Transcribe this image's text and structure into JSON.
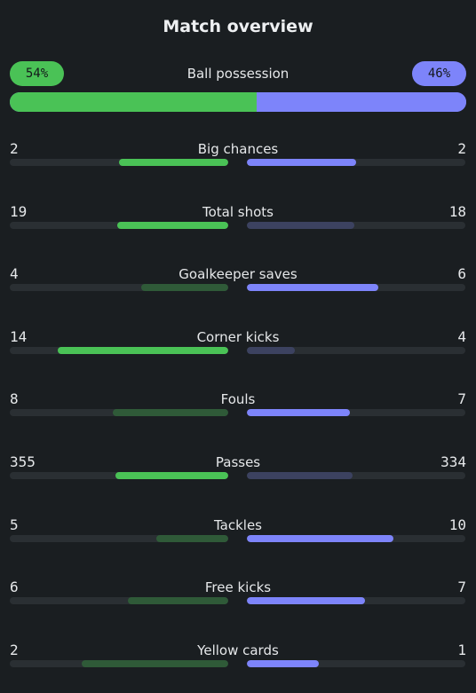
{
  "title": "Match overview",
  "possession": {
    "label": "Ball possession",
    "home": "54%",
    "away": "46%",
    "home_fraction": 0.54
  },
  "colors": {
    "background": "#1a1e21",
    "home": "#4ac256",
    "home_dim": "#2f5a38",
    "away": "#7d84fa",
    "away_dim": "#3c4260",
    "track": "#2a2f33"
  },
  "stats": [
    {
      "label": "Big chances",
      "home": "2",
      "away": "2",
      "home_fraction": 0.5,
      "away_fraction": 0.5,
      "home_bright": true,
      "away_bright": true
    },
    {
      "label": "Total shots",
      "home": "19",
      "away": "18",
      "home_fraction": 0.51,
      "away_fraction": 0.49,
      "home_bright": true,
      "away_bright": false
    },
    {
      "label": "Goalkeeper saves",
      "home": "4",
      "away": "6",
      "home_fraction": 0.4,
      "away_fraction": 0.6,
      "home_bright": false,
      "away_bright": true
    },
    {
      "label": "Corner kicks",
      "home": "14",
      "away": "4",
      "home_fraction": 0.78,
      "away_fraction": 0.22,
      "home_bright": true,
      "away_bright": false
    },
    {
      "label": "Fouls",
      "home": "8",
      "away": "7",
      "home_fraction": 0.53,
      "away_fraction": 0.47,
      "home_bright": false,
      "away_bright": true
    },
    {
      "label": "Passes",
      "home": "355",
      "away": "334",
      "home_fraction": 0.515,
      "away_fraction": 0.485,
      "home_bright": true,
      "away_bright": false
    },
    {
      "label": "Tackles",
      "home": "5",
      "away": "10",
      "home_fraction": 0.33,
      "away_fraction": 0.67,
      "home_bright": false,
      "away_bright": true
    },
    {
      "label": "Free kicks",
      "home": "6",
      "away": "7",
      "home_fraction": 0.46,
      "away_fraction": 0.54,
      "home_bright": false,
      "away_bright": true
    },
    {
      "label": "Yellow cards",
      "home": "2",
      "away": "1",
      "home_fraction": 0.67,
      "away_fraction": 0.33,
      "home_bright": false,
      "away_bright": true
    }
  ]
}
